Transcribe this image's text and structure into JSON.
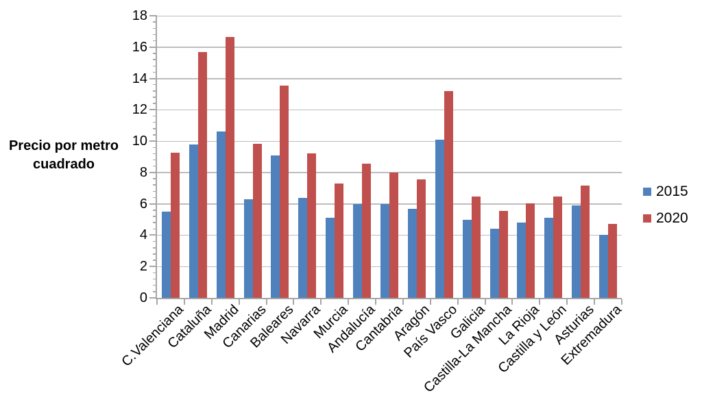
{
  "y_axis_title": {
    "line1": "Precio por metro",
    "line2": "cuadrado"
  },
  "chart_data": {
    "type": "bar",
    "title": "",
    "xlabel": "",
    "ylabel": "Precio por metro cuadrado",
    "categories": [
      "C.Valenciana",
      "Cataluña",
      "Madrid",
      "Canarias",
      "Baleares",
      "Navarra",
      "Murcia",
      "Andalucía",
      "Cantabria",
      "Aragón",
      "País Vasco",
      "Galicia",
      "Castilla-La Mancha",
      "La Rioja",
      "Castilla y León",
      "Asturias",
      "Extremadura"
    ],
    "series": [
      {
        "name": "2015",
        "color": "#4F81BD",
        "values": [
          5.5,
          9.8,
          10.6,
          6.3,
          9.1,
          6.4,
          5.1,
          6.0,
          6.0,
          5.7,
          10.1,
          5.0,
          4.4,
          4.8,
          5.1,
          5.9,
          4.0
        ]
      },
      {
        "name": "2020",
        "color": "#C0504D",
        "values": [
          9.25,
          15.7,
          16.65,
          9.85,
          13.55,
          9.2,
          7.3,
          8.55,
          8.0,
          7.55,
          13.2,
          6.45,
          5.55,
          6.05,
          6.45,
          7.15,
          4.7
        ]
      }
    ],
    "ylim": [
      0,
      18
    ],
    "y_ticks": [
      0,
      2,
      4,
      6,
      8,
      10,
      12,
      14,
      16,
      18
    ],
    "minor_tick_step": 0.4,
    "grid": true,
    "legend_position": "right"
  }
}
